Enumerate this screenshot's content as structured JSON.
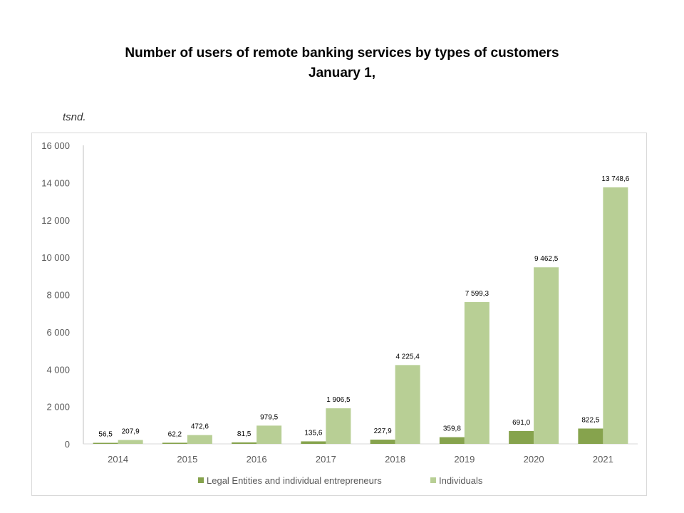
{
  "title": "Number of users of remote banking services by types of customers",
  "subtitle": "January 1,",
  "unit": "tsnd.",
  "chart_data": {
    "type": "bar",
    "title": "Number of users of remote banking services by types of customers",
    "subtitle": "January 1,",
    "ylabel": "tsnd.",
    "categories": [
      "2014",
      "2015",
      "2016",
      "2017",
      "2018",
      "2019",
      "2020",
      "2021"
    ],
    "series": [
      {
        "name": "Legal Entities and  individual entrepreneurs",
        "color": "#86a34d",
        "values": [
          56.5,
          62.2,
          81.5,
          135.6,
          227.9,
          359.8,
          691.0,
          822.5
        ],
        "labels": [
          "56,5",
          "62,2",
          "81,5",
          "135,6",
          "227,9",
          "359,8",
          "691,0",
          "822,5"
        ]
      },
      {
        "name": "Individuals",
        "color": "#b8cf95",
        "values": [
          207.9,
          472.6,
          979.5,
          1906.5,
          4225.4,
          7599.3,
          9462.5,
          13748.6
        ],
        "labels": [
          "207,9",
          "472,6",
          "979,5",
          "1 906,5",
          "4 225,4",
          "7 599,3",
          "9 462,5",
          "13 748,6"
        ]
      }
    ],
    "ylim": [
      0,
      16000
    ],
    "yticks": [
      "0",
      "2 000",
      "4 000",
      "6 000",
      "8 000",
      "10 000",
      "12 000",
      "14 000",
      "16 000"
    ],
    "grid": false,
    "legend": "bottom"
  }
}
